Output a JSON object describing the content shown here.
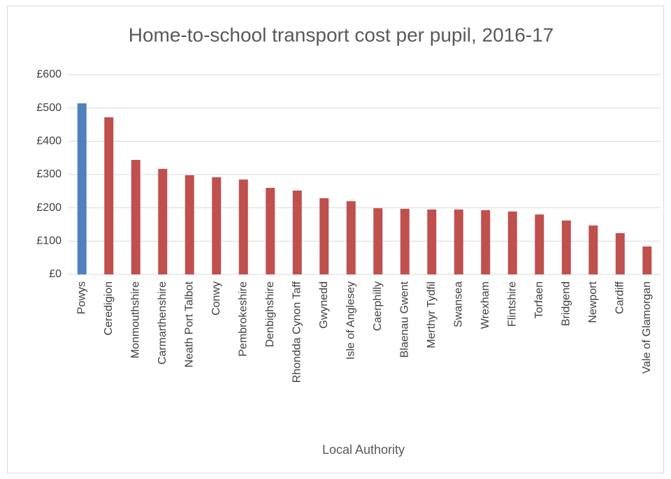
{
  "chart_data": {
    "type": "bar",
    "title": "Home-to-school transport cost per pupil, 2016-17",
    "x_label": "Local Authority",
    "categories": [
      "Powys",
      "Ceredigion",
      "Monmouthshire",
      "Carmarthenshire",
      "Neath Port Talbot",
      "Conwy",
      "Pembrokeshire",
      "Denbighshire",
      "Rhondda Cynon Taff",
      "Gwynedd",
      "Isle of Anglesey",
      "Caerphilly",
      "Blaenau Gwent",
      "Merthyr Tydfil",
      "Swansea",
      "Wrexham",
      "Flintshire",
      "Torfaen",
      "Bridgend",
      "Newport",
      "Cardiff",
      "Vale of Glamorgan"
    ],
    "values": [
      514,
      472,
      344,
      317,
      298,
      292,
      285,
      260,
      252,
      229,
      220,
      199,
      197,
      195,
      195,
      193,
      189,
      180,
      162,
      147,
      124,
      84
    ],
    "colors": [
      "#4f81bd",
      "#c0504d",
      "#c0504d",
      "#c0504d",
      "#c0504d",
      "#c0504d",
      "#c0504d",
      "#c0504d",
      "#c0504d",
      "#c0504d",
      "#c0504d",
      "#c0504d",
      "#c0504d",
      "#c0504d",
      "#c0504d",
      "#c0504d",
      "#c0504d",
      "#c0504d",
      "#c0504d",
      "#c0504d",
      "#c0504d",
      "#c0504d"
    ],
    "ylim": [
      0,
      600
    ],
    "yticks": [
      {
        "value": 0,
        "label": "£0"
      },
      {
        "value": 100,
        "label": "£100"
      },
      {
        "value": 200,
        "label": "£200"
      },
      {
        "value": 300,
        "label": "£300"
      },
      {
        "value": 400,
        "label": "£400"
      },
      {
        "value": 500,
        "label": "£500"
      },
      {
        "value": 600,
        "label": "£600"
      }
    ],
    "grid": true
  }
}
